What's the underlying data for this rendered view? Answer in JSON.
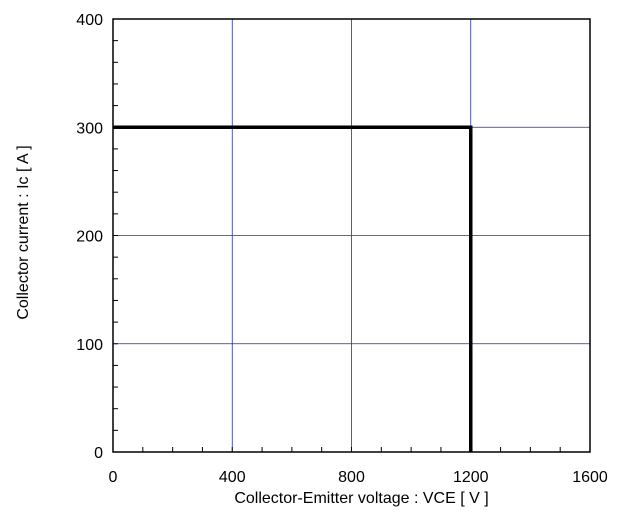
{
  "chart_data": {
    "type": "line",
    "title": "",
    "xlabel": "Collector-Emitter voltage : VCE [ V ]",
    "ylabel": "Collector current : Ic [ A ]",
    "xlim": [
      0,
      1600
    ],
    "ylim": [
      0,
      400
    ],
    "x_ticks": [
      0,
      400,
      800,
      1200,
      1600
    ],
    "y_ticks": [
      0,
      100,
      200,
      300,
      400
    ],
    "x_minor_step": 100,
    "y_minor_step": 20,
    "grid": true,
    "grid_color": "#1f2fb0",
    "series": [
      {
        "color": "#000000",
        "points": [
          [
            0,
            300
          ],
          [
            1200,
            300
          ],
          [
            1200,
            0
          ]
        ]
      }
    ]
  }
}
